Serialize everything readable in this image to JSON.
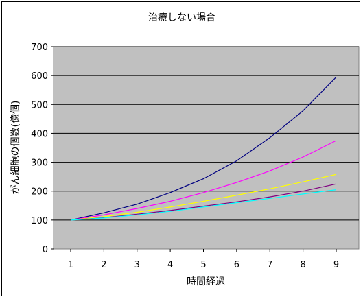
{
  "chart_data": {
    "type": "line",
    "title": "治療しない場合",
    "xlabel": "時間経過",
    "ylabel": "がん細胞の個数(億個)",
    "x": [
      1,
      2,
      3,
      4,
      5,
      6,
      7,
      8,
      9
    ],
    "x_tick_labels": [
      "1",
      "2",
      "3",
      "4",
      "5",
      "6",
      "7",
      "8",
      "9"
    ],
    "y_tick_labels": [
      "0",
      "100",
      "200",
      "300",
      "400",
      "500",
      "600",
      "700"
    ],
    "ylim": [
      0,
      700
    ],
    "grid": true,
    "legend": "none",
    "plot_background": "#c0c0c0",
    "series": [
      {
        "color": "#000080",
        "values": [
          100,
          125,
          155,
          195,
          243,
          305,
          385,
          478,
          595
        ]
      },
      {
        "color": "#ff00ff",
        "values": [
          100,
          118,
          140,
          165,
          195,
          230,
          270,
          318,
          375
        ]
      },
      {
        "color": "#ffff00",
        "values": [
          100,
          112,
          127,
          145,
          165,
          186,
          208,
          232,
          258
        ]
      },
      {
        "color": "#800080",
        "values": [
          100,
          108,
          120,
          133,
          148,
          163,
          180,
          200,
          225
        ]
      },
      {
        "color": "#00ffff",
        "values": [
          100,
          107,
          118,
          130,
          145,
          160,
          175,
          190,
          205
        ]
      }
    ]
  }
}
